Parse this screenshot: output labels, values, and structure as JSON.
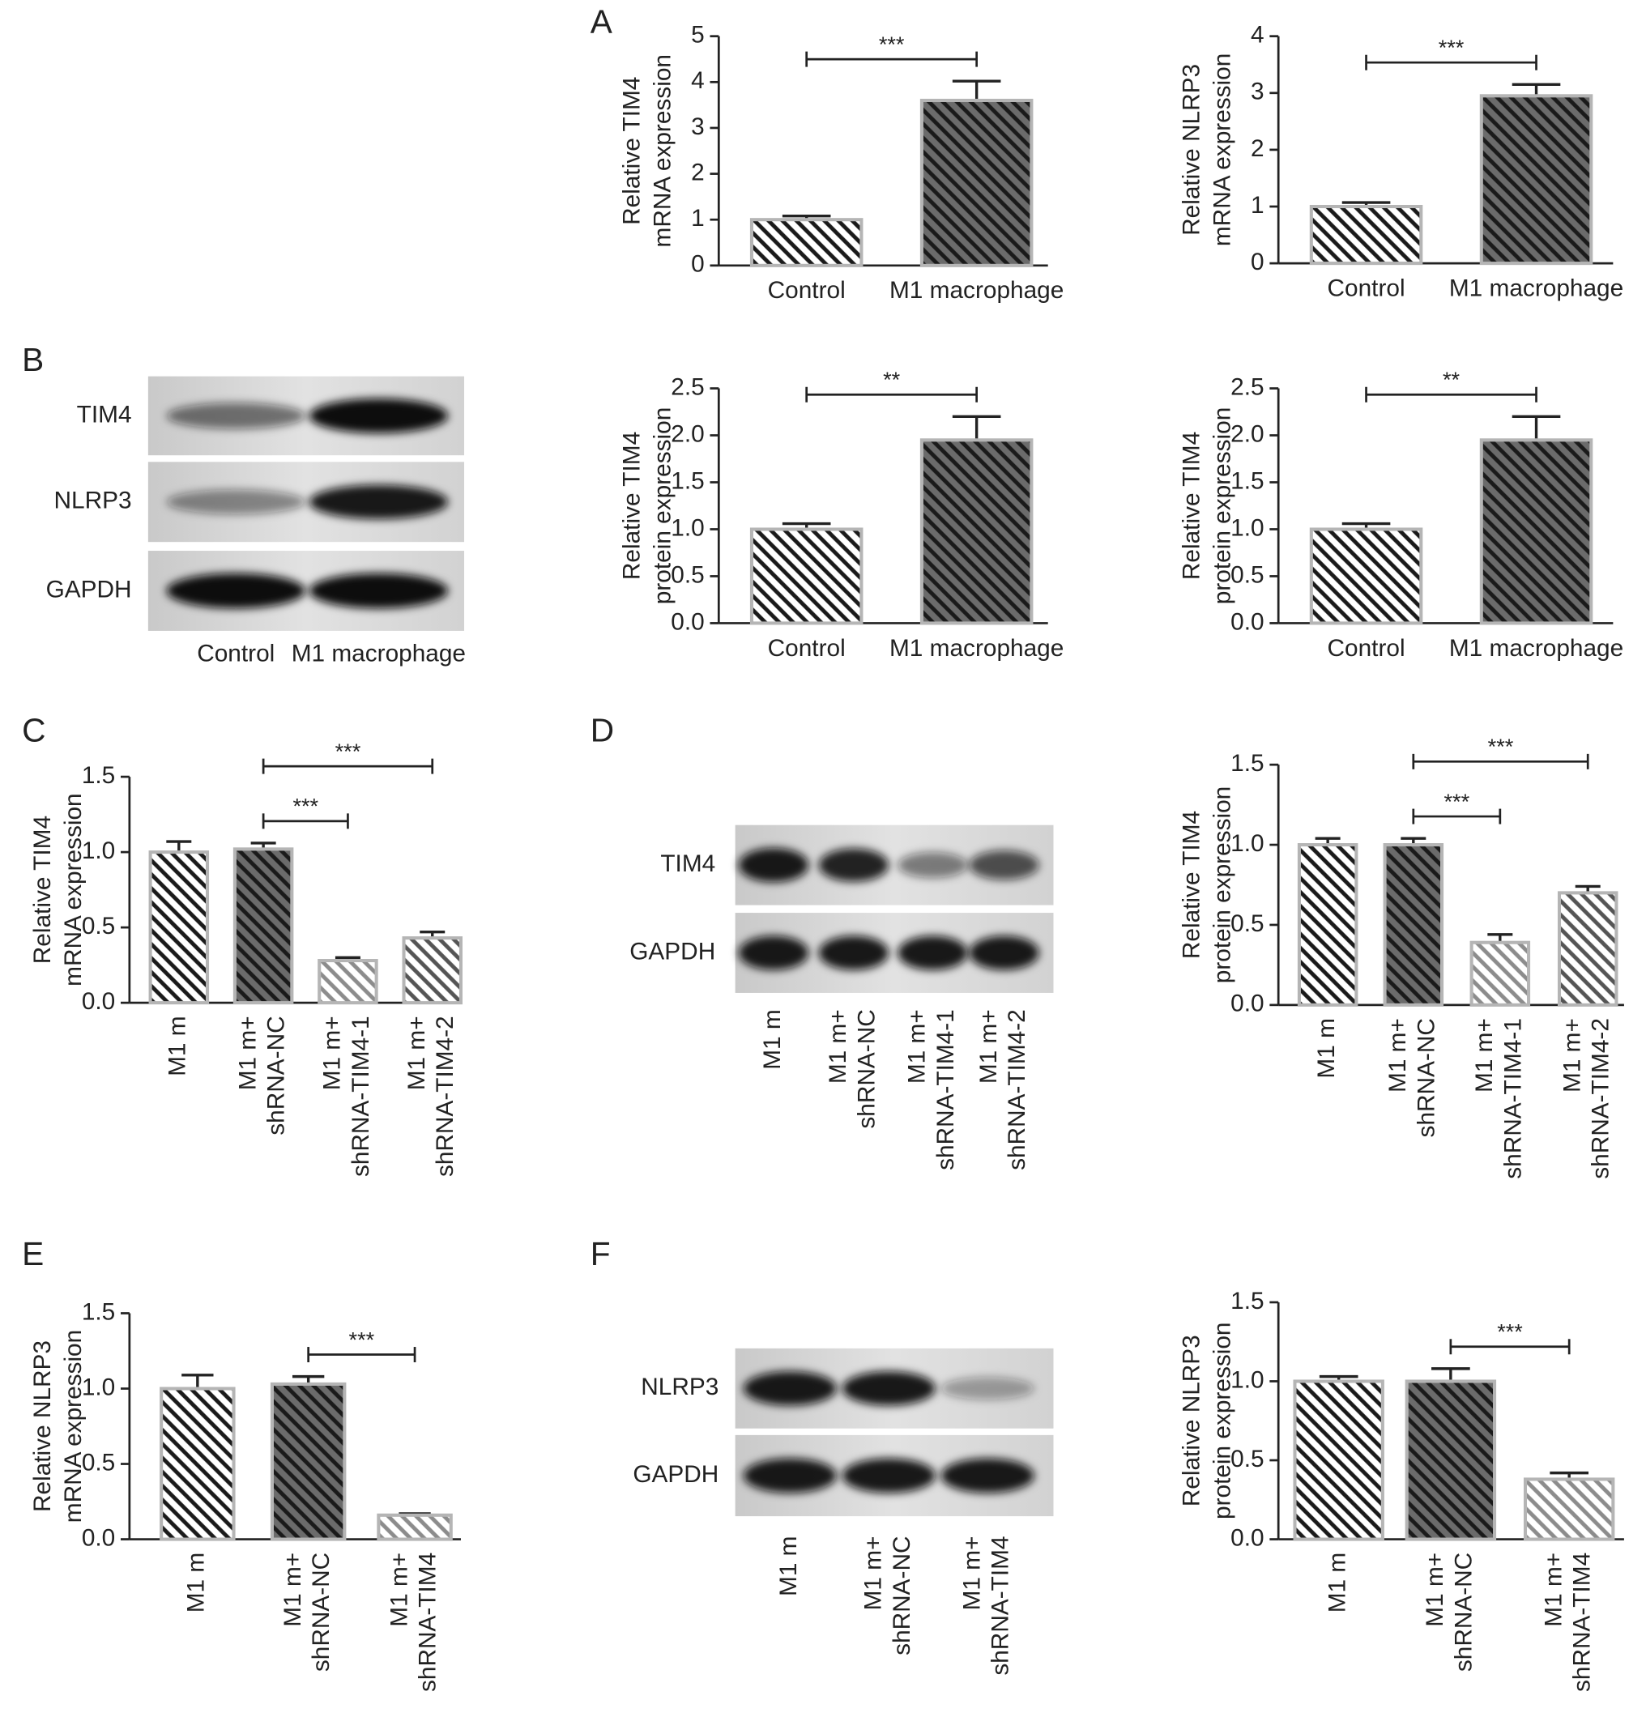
{
  "panels": [
    "A",
    "B",
    "C",
    "D",
    "E",
    "F"
  ],
  "blots": [
    {
      "rows": [
        "TIM4",
        "NLRP3",
        "GAPDH"
      ],
      "lanes": [
        [
          "Control"
        ],
        [
          "M1 macrophage"
        ]
      ]
    },
    {
      "rows": [
        "TIM4",
        "GAPDH"
      ],
      "lanes": [
        [
          "M1 m"
        ],
        [
          "M1 m+",
          "shRNA-NC"
        ],
        [
          "M1 m+",
          "shRNA-TIM4-1"
        ],
        [
          "M1 m+",
          "shRNA-TIM4-2"
        ]
      ]
    },
    {
      "rows": [
        "NLRP3",
        "GAPDH"
      ],
      "lanes": [
        [
          "M1 m"
        ],
        [
          "M1 m+",
          "shRNA-NC"
        ],
        [
          "M1 m+",
          "shRNA-TIM4"
        ]
      ]
    }
  ],
  "chart_data": [
    {
      "type": "bar",
      "y_label": [
        "Relative TIM4",
        "mRNA expression"
      ],
      "categories": [
        [
          "Control"
        ],
        [
          "M1 macrophage"
        ]
      ],
      "values": [
        1.0,
        3.6
      ],
      "errors": [
        0.08,
        0.42
      ],
      "colors": [
        "#ffffff",
        "#6b6b6b"
      ],
      "hatch_colors": [
        "#1a1a1a",
        "#1a1a1a"
      ],
      "ylim": [
        0,
        5
      ],
      "yticks": [
        0,
        1,
        2,
        3,
        4,
        5
      ],
      "comparisons": [
        {
          "groups": [
            0,
            1
          ],
          "label": "***"
        }
      ]
    },
    {
      "type": "bar",
      "y_label": [
        "Relative NLRP3",
        "mRNA expression"
      ],
      "categories": [
        [
          "Control"
        ],
        [
          "M1 macrophage"
        ]
      ],
      "values": [
        1.0,
        2.95
      ],
      "errors": [
        0.07,
        0.2
      ],
      "colors": [
        "#ffffff",
        "#6b6b6b"
      ],
      "hatch_colors": [
        "#1a1a1a",
        "#1a1a1a"
      ],
      "ylim": [
        0,
        4
      ],
      "yticks": [
        0,
        1,
        2,
        3,
        4
      ],
      "comparisons": [
        {
          "groups": [
            0,
            1
          ],
          "label": "***"
        }
      ]
    },
    {
      "type": "bar",
      "y_label": [
        "Relative TIM4",
        "protein expression"
      ],
      "categories": [
        [
          "Control"
        ],
        [
          "M1 macrophage"
        ]
      ],
      "values": [
        1.0,
        1.95
      ],
      "errors": [
        0.06,
        0.25
      ],
      "colors": [
        "#ffffff",
        "#6b6b6b"
      ],
      "hatch_colors": [
        "#1a1a1a",
        "#1a1a1a"
      ],
      "ylim": [
        0,
        2.5
      ],
      "yticks": [
        {
          "value": 0,
          "label": "0.0"
        },
        0.5,
        {
          "value": 1,
          "label": "1.0"
        },
        1.5,
        {
          "value": 2,
          "label": "2.0"
        },
        2.5
      ],
      "comparisons": [
        {
          "groups": [
            0,
            1
          ],
          "label": "**"
        }
      ]
    },
    {
      "type": "bar",
      "y_label": [
        "Relative TIM4",
        "protein expression"
      ],
      "categories": [
        [
          "Control"
        ],
        [
          "M1 macrophage"
        ]
      ],
      "values": [
        1.0,
        1.95
      ],
      "errors": [
        0.06,
        0.25
      ],
      "colors": [
        "#ffffff",
        "#6b6b6b"
      ],
      "hatch_colors": [
        "#1a1a1a",
        "#1a1a1a"
      ],
      "ylim": [
        0,
        2.5
      ],
      "yticks": [
        {
          "value": 0,
          "label": "0.0"
        },
        0.5,
        {
          "value": 1,
          "label": "1.0"
        },
        1.5,
        {
          "value": 2,
          "label": "2.0"
        },
        2.5
      ],
      "comparisons": [
        {
          "groups": [
            0,
            1
          ],
          "label": "**"
        }
      ]
    },
    {
      "type": "bar",
      "y_label": [
        "Relative TIM4",
        "mRNA expression"
      ],
      "categories": [
        [
          "M1 m"
        ],
        [
          "M1 m+",
          "shRNA-NC"
        ],
        [
          "M1 m+",
          "shRNA-TIM4-1"
        ],
        [
          "M1 m+",
          "shRNA-TIM4-2"
        ]
      ],
      "values": [
        1.0,
        1.02,
        0.28,
        0.43
      ],
      "errors": [
        0.07,
        0.04,
        0.02,
        0.04
      ],
      "colors": [
        "#ffffff",
        "#6b6b6b",
        "#ffffff",
        "#ffffff"
      ],
      "hatch_colors": [
        "#1a1a1a",
        "#1a1a1a",
        "#8c8c8c",
        "#555555"
      ],
      "ylim": [
        0,
        1.5
      ],
      "yticks": [
        {
          "value": 0,
          "label": "0.0"
        },
        0.5,
        {
          "value": 1,
          "label": "1.0"
        },
        1.5
      ],
      "comparisons": [
        {
          "groups": [
            1,
            2
          ],
          "label": "***"
        },
        {
          "groups": [
            1,
            3
          ],
          "label": "***"
        }
      ]
    },
    {
      "type": "bar",
      "y_label": [
        "Relative TIM4",
        "protein expression"
      ],
      "categories": [
        [
          "M1 m"
        ],
        [
          "M1 m+",
          "shRNA-NC"
        ],
        [
          "M1 m+",
          "shRNA-TIM4-1"
        ],
        [
          "M1 m+",
          "shRNA-TIM4-2"
        ]
      ],
      "values": [
        1.0,
        1.0,
        0.39,
        0.7
      ],
      "errors": [
        0.04,
        0.04,
        0.05,
        0.04
      ],
      "colors": [
        "#ffffff",
        "#6b6b6b",
        "#ffffff",
        "#ffffff"
      ],
      "hatch_colors": [
        "#1a1a1a",
        "#1a1a1a",
        "#8c8c8c",
        "#555555"
      ],
      "ylim": [
        0,
        1.5
      ],
      "yticks": [
        {
          "value": 0,
          "label": "0.0"
        },
        0.5,
        {
          "value": 1,
          "label": "1.0"
        },
        1.5
      ],
      "comparisons": [
        {
          "groups": [
            1,
            2
          ],
          "label": "***"
        },
        {
          "groups": [
            1,
            3
          ],
          "label": "***"
        }
      ]
    },
    {
      "type": "bar",
      "y_label": [
        "Relative NLRP3",
        "mRNA expression"
      ],
      "categories": [
        [
          "M1 m"
        ],
        [
          "M1 m+",
          "shRNA-NC"
        ],
        [
          "M1 m+",
          "shRNA-TIM4"
        ]
      ],
      "values": [
        1.0,
        1.03,
        0.16
      ],
      "errors": [
        0.09,
        0.05,
        0.01
      ],
      "colors": [
        "#ffffff",
        "#6b6b6b",
        "#ffffff"
      ],
      "hatch_colors": [
        "#1a1a1a",
        "#1a1a1a",
        "#8c8c8c"
      ],
      "ylim": [
        0,
        1.5
      ],
      "yticks": [
        {
          "value": 0,
          "label": "0.0"
        },
        0.5,
        {
          "value": 1,
          "label": "1.0"
        },
        1.5
      ],
      "comparisons": [
        {
          "groups": [
            1,
            2
          ],
          "label": "***"
        }
      ]
    },
    {
      "type": "bar",
      "y_label": [
        "Relative NLRP3",
        "protein expression"
      ],
      "categories": [
        [
          "M1 m"
        ],
        [
          "M1 m+",
          "shRNA-NC"
        ],
        [
          "M1 m+",
          "shRNA-TIM4"
        ]
      ],
      "values": [
        1.0,
        1.0,
        0.38
      ],
      "errors": [
        0.03,
        0.08,
        0.04
      ],
      "colors": [
        "#ffffff",
        "#6b6b6b",
        "#ffffff"
      ],
      "hatch_colors": [
        "#1a1a1a",
        "#1a1a1a",
        "#8c8c8c"
      ],
      "ylim": [
        0,
        1.5
      ],
      "yticks": [
        {
          "value": 0,
          "label": "0.0"
        },
        0.5,
        {
          "value": 1,
          "label": "1.0"
        },
        1.5
      ],
      "comparisons": [
        {
          "groups": [
            1,
            2
          ],
          "label": "***"
        }
      ]
    }
  ]
}
